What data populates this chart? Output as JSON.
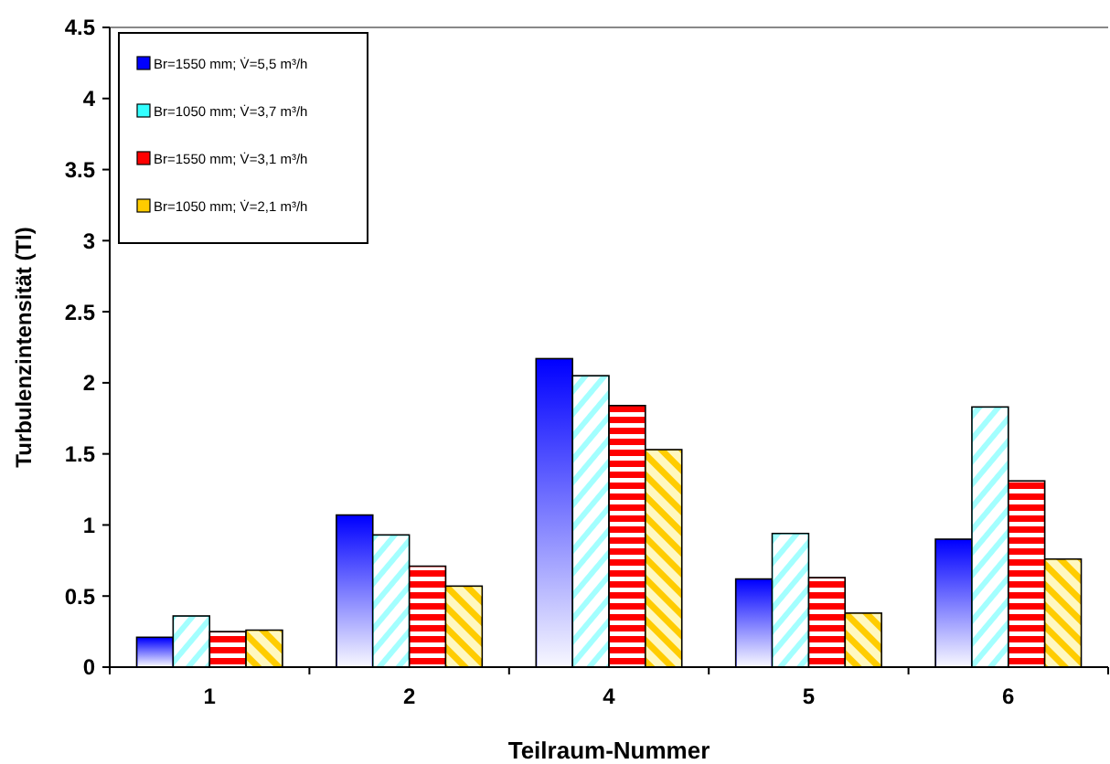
{
  "chart_data": {
    "type": "bar",
    "xlabel": "Teilraum-Nummer",
    "ylabel": "Turbulenzintensität (TI)",
    "categories": [
      "1",
      "2",
      "4",
      "5",
      "6"
    ],
    "series": [
      {
        "name": "Br=1550 mm; V̇=5,5 m³/h",
        "color": "#0000ff",
        "values": [
          0.21,
          1.07,
          2.17,
          0.62,
          0.9
        ]
      },
      {
        "name": "Br=1050 mm; V̇=3,7 m³/h",
        "color": "#33ffff",
        "values": [
          0.36,
          0.93,
          2.05,
          0.94,
          1.83
        ]
      },
      {
        "name": "Br=1550 mm; V̇=3,1 m³/h",
        "color": "#ff0000",
        "values": [
          0.25,
          0.71,
          1.84,
          0.63,
          1.31
        ]
      },
      {
        "name": "Br=1050 mm; V̇=2,1 m³/h",
        "color": "#ffcc00",
        "values": [
          0.26,
          0.57,
          1.53,
          0.38,
          0.76
        ]
      }
    ],
    "ylim": [
      0,
      4.5
    ],
    "yticks": [
      0,
      0.5,
      1,
      1.5,
      2,
      2.5,
      3,
      3.5,
      4,
      4.5
    ],
    "grid": false,
    "legend": "top left"
  }
}
